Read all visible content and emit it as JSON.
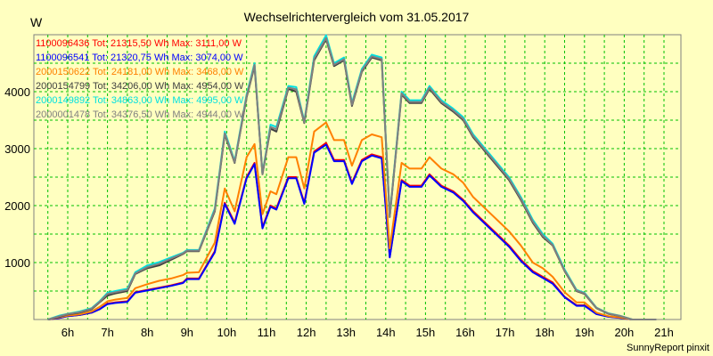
{
  "chart_data": {
    "type": "line",
    "title": "Wechselrichtervergleich vom 31.05.2017",
    "ylabel": "W",
    "credit": "SunnyReport pinxit",
    "x_hours": [
      5.5,
      5.8,
      6.0,
      6.3,
      6.6,
      6.8,
      7.0,
      7.2,
      7.5,
      7.7,
      8.0,
      8.3,
      8.6,
      8.9,
      9.0,
      9.3,
      9.7,
      9.95,
      10.2,
      10.5,
      10.7,
      10.9,
      11.1,
      11.25,
      11.55,
      11.75,
      11.95,
      12.2,
      12.5,
      12.7,
      12.95,
      13.15,
      13.4,
      13.65,
      13.9,
      14.1,
      14.4,
      14.6,
      14.9,
      15.1,
      15.4,
      15.7,
      15.95,
      16.2,
      16.5,
      16.8,
      17.1,
      17.4,
      17.7,
      17.95,
      18.2,
      18.5,
      18.8,
      19.0,
      19.3,
      19.6,
      19.9,
      20.2,
      20.5,
      20.8
    ],
    "ylim": [
      0,
      5000
    ],
    "yticks": [
      1000,
      2000,
      3000,
      4000
    ],
    "xticks": [
      "6h",
      "7h",
      "8h",
      "9h",
      "10h",
      "11h",
      "12h",
      "13h",
      "14h",
      "15h",
      "16h",
      "17h",
      "18h",
      "19h",
      "20h",
      "21h"
    ],
    "series": [
      {
        "name": "1100096436",
        "color": "#ff0000",
        "legend": "1100096436 Tot: 21315,50 Wh Max: 3111,00 W",
        "values": [
          0,
          30,
          60,
          80,
          120,
          180,
          280,
          300,
          320,
          480,
          520,
          560,
          600,
          650,
          720,
          720,
          1200,
          2050,
          1700,
          2500,
          2750,
          1620,
          2000,
          1950,
          2500,
          2500,
          2050,
          2950,
          3100,
          2800,
          2800,
          2400,
          2800,
          2900,
          2850,
          1100,
          2450,
          2350,
          2350,
          2550,
          2350,
          2250,
          2100,
          1900,
          1700,
          1500,
          1300,
          1050,
          850,
          750,
          650,
          400,
          250,
          250,
          100,
          50,
          30,
          0,
          0,
          0
        ]
      },
      {
        "name": "1100096541",
        "color": "#0000ff",
        "legend": "1100096541 Tot: 21320,75 Wh Max: 3074,00 W",
        "values": [
          0,
          30,
          60,
          80,
          120,
          180,
          270,
          290,
          310,
          470,
          510,
          550,
          590,
          640,
          710,
          710,
          1180,
          2030,
          1680,
          2480,
          2730,
          1600,
          1980,
          1930,
          2480,
          2480,
          2030,
          2930,
          3070,
          2780,
          2780,
          2380,
          2780,
          2880,
          2830,
          1090,
          2430,
          2330,
          2330,
          2530,
          2330,
          2230,
          2080,
          1880,
          1680,
          1480,
          1280,
          1030,
          830,
          730,
          630,
          390,
          240,
          240,
          95,
          48,
          28,
          0,
          0,
          0
        ]
      },
      {
        "name": "2000150622",
        "color": "#ff8000",
        "legend": "2000150622 Tot: 24181,00 Wh Max: 3468,00 W",
        "values": [
          0,
          40,
          70,
          90,
          140,
          220,
          320,
          350,
          380,
          550,
          620,
          680,
          720,
          780,
          820,
          830,
          1350,
          2300,
          1900,
          2850,
          3080,
          1850,
          2250,
          2200,
          2850,
          2850,
          2300,
          3300,
          3460,
          3150,
          3150,
          2700,
          3150,
          3250,
          3200,
          1250,
          2750,
          2650,
          2650,
          2850,
          2650,
          2550,
          2400,
          2150,
          1950,
          1750,
          1550,
          1300,
          1000,
          900,
          750,
          480,
          300,
          300,
          120,
          60,
          35,
          0,
          0,
          0
        ]
      },
      {
        "name": "2000154799",
        "color": "#404040",
        "legend": "2000154799 Tot: 34206,00 Wh Max: 4954,00 W",
        "values": [
          0,
          50,
          90,
          120,
          180,
          300,
          420,
          460,
          500,
          800,
          900,
          950,
          1050,
          1150,
          1200,
          1200,
          1900,
          3250,
          2750,
          3900,
          4450,
          2550,
          3350,
          3300,
          4050,
          4000,
          3450,
          4550,
          4920,
          4450,
          4550,
          3750,
          4350,
          4600,
          4550,
          1800,
          3950,
          3800,
          3800,
          4050,
          3800,
          3650,
          3500,
          3200,
          2950,
          2700,
          2450,
          2100,
          1700,
          1450,
          1300,
          850,
          500,
          450,
          200,
          100,
          60,
          0,
          0,
          0
        ]
      },
      {
        "name": "2000149892",
        "color": "#00e0e0",
        "legend": "2000149892 Tot: 34863,00 Wh Max: 4995,00 W",
        "values": [
          0,
          70,
          100,
          140,
          200,
          320,
          470,
          500,
          540,
          830,
          950,
          1010,
          1090,
          1170,
          1220,
          1220,
          1950,
          3300,
          2780,
          3950,
          4500,
          2560,
          3420,
          3380,
          4100,
          4080,
          3480,
          4620,
          4990,
          4500,
          4600,
          3800,
          4400,
          4650,
          4600,
          1820,
          4000,
          3850,
          3850,
          4100,
          3850,
          3700,
          3550,
          3250,
          3000,
          2750,
          2500,
          2150,
          1750,
          1500,
          1330,
          880,
          520,
          470,
          210,
          110,
          65,
          0,
          0,
          0
        ]
      },
      {
        "name": "2000001478",
        "color": "#808080",
        "legend": "2000001478 Tot: 34376,50 Wh Max: 4944,00 W",
        "values": [
          0,
          60,
          95,
          130,
          190,
          310,
          450,
          480,
          520,
          810,
          920,
          980,
          1070,
          1160,
          1210,
          1210,
          1920,
          3270,
          2760,
          3920,
          4470,
          2550,
          3380,
          3340,
          4070,
          4040,
          3460,
          4580,
          4940,
          4470,
          4570,
          3770,
          4370,
          4620,
          4570,
          1810,
          3970,
          3820,
          3820,
          4070,
          3820,
          3670,
          3520,
          3220,
          2970,
          2720,
          2470,
          2120,
          1720,
          1470,
          1310,
          860,
          510,
          460,
          205,
          105,
          62,
          0,
          0,
          0
        ]
      }
    ]
  }
}
